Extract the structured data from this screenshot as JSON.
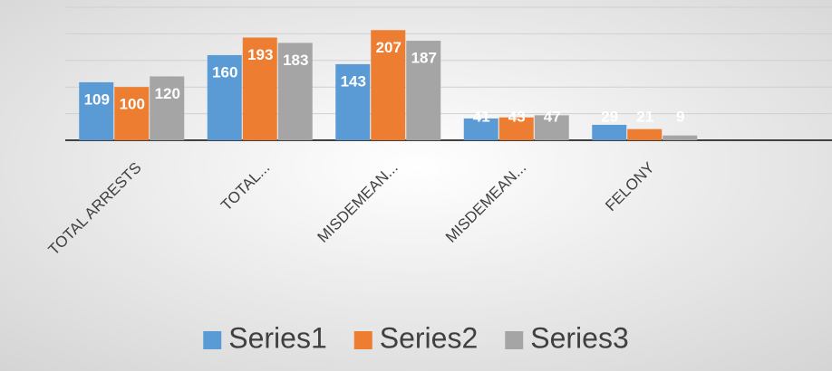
{
  "chart_data": {
    "type": "bar",
    "categories": [
      "TOTAL ARRESTS",
      "TOTAL...",
      "MISDEMEAN...",
      "MISDEMEAN...",
      "FELONY"
    ],
    "series": [
      {
        "name": "Series1",
        "color": "#5b9bd5",
        "values": [
          109,
          160,
          143,
          41,
          29
        ]
      },
      {
        "name": "Series2",
        "color": "#ed7d31",
        "values": [
          100,
          193,
          207,
          43,
          21
        ]
      },
      {
        "name": "Series3",
        "color": "#a5a5a5",
        "values": [
          120,
          183,
          187,
          47,
          9
        ]
      }
    ],
    "ylim": [
      0,
      250
    ],
    "yticks": [
      0,
      50,
      100,
      150,
      200,
      250
    ],
    "grid": true,
    "legend": "bottom"
  }
}
